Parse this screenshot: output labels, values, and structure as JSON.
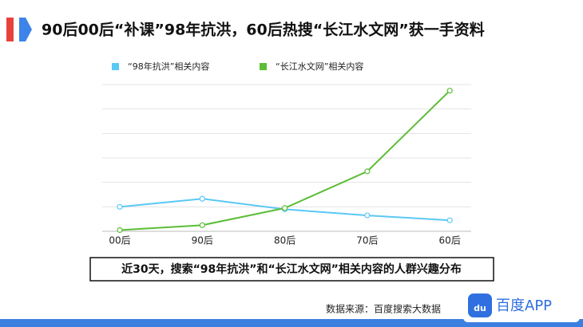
{
  "header": {
    "title": "90后00后“补课”98年抗洪，60后热搜“长江水文网”获一手资料"
  },
  "chart_data": {
    "type": "line",
    "categories": [
      "00后",
      "90后",
      "80后",
      "70后",
      "60后"
    ],
    "series": [
      {
        "name": "“98年抗洪”相关内容",
        "color": "#5bc8f5",
        "values": [
          1.0,
          1.33,
          0.9,
          0.65,
          0.45
        ]
      },
      {
        "name": "“长江水文网”相关内容",
        "color": "#5cbd36",
        "values": [
          0.05,
          0.25,
          0.95,
          2.45,
          5.75
        ]
      }
    ],
    "ylim": [
      0,
      6
    ],
    "yticks": [
      0,
      1,
      2,
      3,
      4,
      5,
      6
    ],
    "grid": true
  },
  "caption": "近30天，搜索“98年抗洪”和“长江水文网”相关内容的人群兴趣分布",
  "source": "数据来源：百度搜索大数据",
  "logo": {
    "icon": "du",
    "text": "百度APP"
  }
}
